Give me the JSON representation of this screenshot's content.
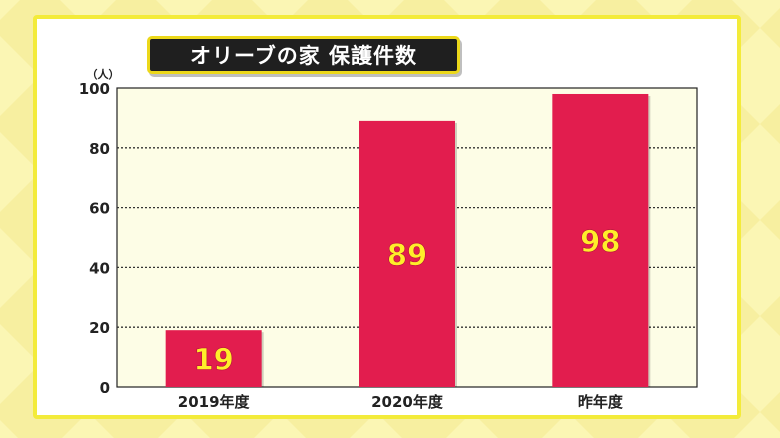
{
  "title": "オリーブの家 保護件数",
  "colors": {
    "background": "#fbf6b4",
    "card_border": "#f3eb3a",
    "plot_area": "#fdfde6",
    "bar": "#e21d4e",
    "bar_label": "#ffee2a",
    "title_box": "#1f1f1f",
    "title_border": "#ecd81a"
  },
  "chart_data": {
    "type": "bar",
    "categories": [
      "2019年度",
      "2020年度",
      "昨年度"
    ],
    "values": [
      19,
      89,
      98
    ],
    "value_labels": [
      "19",
      "89",
      "98"
    ],
    "unit": "（人）",
    "ylim": [
      0,
      100
    ],
    "yticks": [
      0,
      20,
      40,
      60,
      80,
      100
    ],
    "grid": "horizontal dotted",
    "legend": "none"
  }
}
